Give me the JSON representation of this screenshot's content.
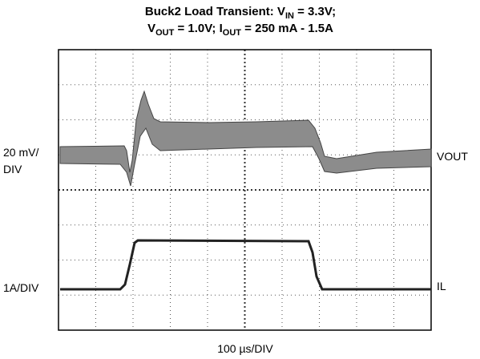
{
  "header": {
    "line1": {
      "text": "Buck2 Load Transient: V",
      "sub": "IN",
      "tail": " = 3.3V;"
    },
    "line2": {
      "text": "V",
      "sub": "OUT",
      "mid": " = 1.0V; I",
      "sub2": "OUT",
      "tail": " = 250 mA - 1.5A"
    }
  },
  "labels": {
    "vout_scale_1": "20 mV/",
    "vout_scale_2": "DIV",
    "vout_name": "VOUT",
    "il_scale": "1A/DIV",
    "il_name": "IL",
    "time_scale": "100 µs/DIV"
  }
}
